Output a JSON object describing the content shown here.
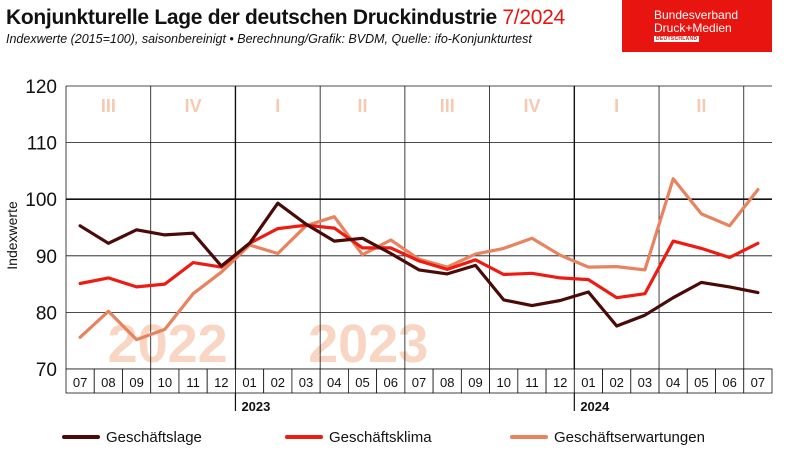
{
  "header": {
    "title_main": "Konjunkturelle Lage der deutschen Druckindustrie",
    "title_date": "7/2024",
    "subtitle": "Indexwerte (2015=100), saisonbereinigt • Berechnung/Grafik: BVDM, Quelle: ifo-Konjunkturtest"
  },
  "logo": {
    "line1": "Bundesverband",
    "line2": "Druck+Medien",
    "line3": "DEUTSCHLAND"
  },
  "colors": {
    "lage": "#4a0a08",
    "klima": "#ee1b12",
    "erwartungen": "#e8825f",
    "quarter_label": "#f6c9b2",
    "year_watermark": "#f8d6c3",
    "brand": "#e8140f"
  },
  "chart_data": {
    "type": "line",
    "ylabel": "Indexwerte",
    "ylim": [
      70,
      120
    ],
    "yticks": [
      70,
      80,
      90,
      100,
      110,
      120
    ],
    "x": [
      "07",
      "08",
      "09",
      "10",
      "11",
      "12",
      "01",
      "02",
      "03",
      "04",
      "05",
      "06",
      "07",
      "08",
      "09",
      "10",
      "11",
      "12",
      "01",
      "02",
      "03",
      "04",
      "05",
      "06",
      "07"
    ],
    "year_labels": [
      {
        "label": "2023",
        "start_index": 6
      },
      {
        "label": "2024",
        "start_index": 18
      }
    ],
    "quarter_labels": [
      "III",
      "IV",
      "I",
      "II",
      "III",
      "IV",
      "I",
      "II"
    ],
    "year_watermarks": [
      {
        "label": "2022",
        "center_index": 3.1
      },
      {
        "label": "2023",
        "center_index": 10.2
      }
    ],
    "series": [
      {
        "name": "Geschäftslage",
        "color_key": "lage",
        "values": [
          95.3,
          92.2,
          94.6,
          93.7,
          94.0,
          88.2,
          92.2,
          99.3,
          95.6,
          92.6,
          93.1,
          90.4,
          87.5,
          86.8,
          88.3,
          82.2,
          81.2,
          82.1,
          83.6,
          77.6,
          79.5,
          82.6,
          85.3,
          84.5,
          83.5
        ]
      },
      {
        "name": "Geschäftsklima",
        "color_key": "klima",
        "values": [
          85.1,
          86.1,
          84.5,
          85.0,
          88.8,
          88.0,
          92.2,
          94.8,
          95.4,
          94.9,
          91.4,
          91.4,
          89.1,
          87.6,
          89.3,
          86.7,
          86.9,
          86.1,
          85.8,
          82.6,
          83.3,
          92.6,
          91.3,
          89.7,
          92.2
        ]
      },
      {
        "name": "Geschäftserwartungen",
        "color_key": "erwartungen",
        "values": [
          75.6,
          80.2,
          75.2,
          77.0,
          83.3,
          87.1,
          91.9,
          90.4,
          95.3,
          96.9,
          90.2,
          92.8,
          89.4,
          88.0,
          90.3,
          91.3,
          93.1,
          90.1,
          88.0,
          88.1,
          87.5,
          103.6,
          97.4,
          95.3,
          101.7
        ]
      }
    ],
    "grid": true,
    "legend_position": "bottom"
  }
}
